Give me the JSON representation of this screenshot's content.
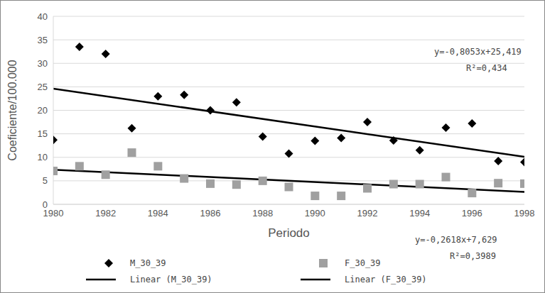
{
  "chart_data": {
    "type": "scatter",
    "x_label": "Periodo",
    "y_label": "Coeficiente/100.000",
    "x": [
      1980,
      1981,
      1982,
      1983,
      1984,
      1985,
      1986,
      1987,
      1988,
      1989,
      1990,
      1991,
      1992,
      1993,
      1994,
      1995,
      1996,
      1997,
      1998
    ],
    "series": [
      {
        "name": "M_30_39",
        "type": "scatter",
        "marker": "diamond",
        "color": "#000000",
        "values": [
          13.7,
          33.5,
          32,
          16.2,
          23,
          23.3,
          20,
          21.7,
          14.4,
          10.8,
          13.5,
          14.1,
          17.5,
          13.6,
          11.5,
          16.3,
          17.2,
          9.2,
          9
        ]
      },
      {
        "name": "F_30_39",
        "type": "scatter",
        "marker": "square",
        "color": "#a0a0a0",
        "values": [
          7.1,
          8.1,
          6.3,
          11,
          8.1,
          5.5,
          4.4,
          4.2,
          5,
          3.7,
          1.8,
          1.8,
          3.4,
          4.3,
          4.3,
          5.8,
          2.4,
          4.5,
          4.4
        ]
      },
      {
        "name": "Linear (M_30_39)",
        "type": "line",
        "line_style": "solid",
        "color": "#000000",
        "values": [
          24.61,
          null,
          null,
          null,
          null,
          null,
          null,
          null,
          null,
          null,
          null,
          null,
          null,
          null,
          null,
          null,
          null,
          null,
          10.12
        ]
      },
      {
        "name": "Linear (F_30_39)",
        "type": "line",
        "line_style": "solid",
        "color": "#000000",
        "values": [
          7.37,
          null,
          null,
          null,
          null,
          null,
          null,
          null,
          null,
          null,
          null,
          null,
          null,
          null,
          null,
          null,
          null,
          null,
          2.65
        ]
      }
    ],
    "annotations": [
      "y=-0,8053x+25,419",
      "R²=0,434",
      "y=-0,2618x+7,629",
      "R²=0,3989"
    ],
    "xlim": [
      1980,
      1998
    ],
    "xticks": [
      1980,
      1982,
      1984,
      1986,
      1988,
      1990,
      1992,
      1994,
      1996,
      1998
    ],
    "ylim": [
      0,
      40
    ],
    "yticks": [
      0,
      5,
      10,
      15,
      20,
      25,
      30,
      35,
      40
    ],
    "grid": true,
    "legend": "bottom"
  }
}
